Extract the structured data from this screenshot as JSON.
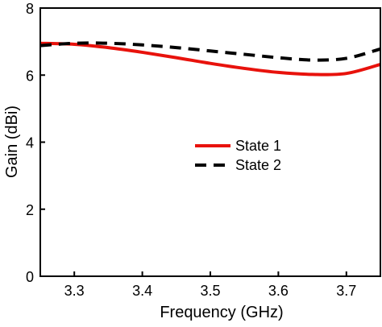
{
  "chart_data": {
    "type": "line",
    "title": "",
    "xlabel": "Frequency (GHz)",
    "ylabel": "Gain (dBi)",
    "xlim": [
      3.25,
      3.75
    ],
    "ylim": [
      0,
      8
    ],
    "x_ticks": [
      3.3,
      3.4,
      3.5,
      3.6,
      3.7
    ],
    "x_tick_labels": [
      "3.3",
      "3.4",
      "3.5",
      "3.6",
      "3.7"
    ],
    "y_ticks": [
      0,
      2,
      4,
      6,
      8
    ],
    "y_tick_labels": [
      "0",
      "2",
      "4",
      "6",
      "8"
    ],
    "grid": false,
    "legend_position": "center-right",
    "series": [
      {
        "name": "State 1",
        "color": "#e8120c",
        "line_style": "solid",
        "x": [
          3.25,
          3.3,
          3.35,
          3.4,
          3.45,
          3.5,
          3.55,
          3.6,
          3.65,
          3.7,
          3.75
        ],
        "values": [
          6.95,
          6.92,
          6.82,
          6.68,
          6.52,
          6.35,
          6.2,
          6.08,
          6.02,
          6.05,
          6.32
        ]
      },
      {
        "name": "State 2",
        "color": "#000000",
        "line_style": "dashed",
        "x": [
          3.25,
          3.3,
          3.35,
          3.4,
          3.45,
          3.5,
          3.55,
          3.6,
          3.65,
          3.7,
          3.75
        ],
        "values": [
          6.88,
          6.95,
          6.95,
          6.9,
          6.82,
          6.72,
          6.62,
          6.52,
          6.45,
          6.5,
          6.78
        ]
      }
    ]
  }
}
